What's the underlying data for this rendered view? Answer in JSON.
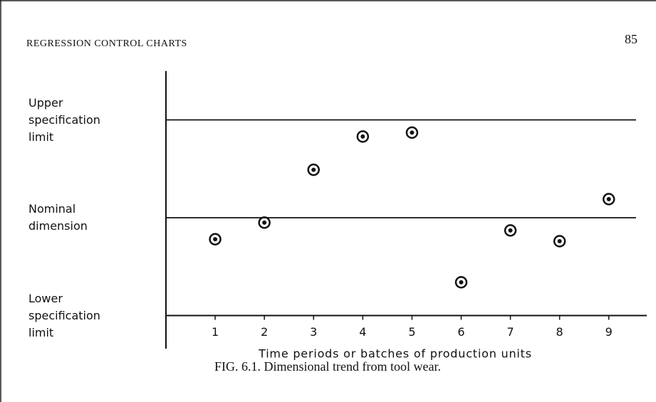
{
  "header": {
    "running_title": "REGRESSION CONTROL CHARTS",
    "page_number": "85"
  },
  "caption": "FIG. 6.1. Dimensional trend from tool wear.",
  "chart_data": {
    "type": "scatter",
    "x_label": "Time periods or batches of production units",
    "x": [
      1,
      2,
      3,
      4,
      5,
      6,
      7,
      8,
      9
    ],
    "values": [
      -0.22,
      -0.05,
      0.49,
      0.83,
      0.87,
      -0.66,
      -0.13,
      -0.24,
      0.19
    ],
    "xlim": [
      0,
      9.8
    ],
    "xticks": [
      1,
      2,
      3,
      4,
      5,
      6,
      7,
      8,
      9
    ],
    "ylim": [
      -1,
      1.5
    ],
    "yticks": [
      {
        "value": -1,
        "label": "Lower specification limit"
      },
      {
        "value": 0,
        "label": "Nominal dimension"
      },
      {
        "value": 1,
        "label": "Upper specification limit"
      }
    ],
    "grid": true,
    "color": "#111111"
  }
}
